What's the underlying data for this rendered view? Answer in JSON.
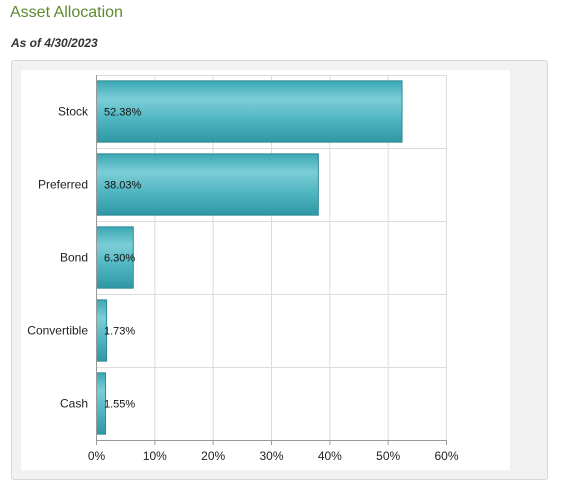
{
  "header": {
    "title": "Asset Allocation",
    "as_of": "As of 4/30/2023"
  },
  "chart_data": {
    "type": "bar",
    "orientation": "horizontal",
    "categories": [
      "Stock",
      "Preferred",
      "Bond",
      "Convertible",
      "Cash"
    ],
    "values": [
      52.38,
      38.03,
      6.3,
      1.73,
      1.55
    ],
    "value_labels": [
      "52.38%",
      "38.03%",
      "6.30%",
      "1.73%",
      "1.55%"
    ],
    "xlim": [
      0,
      60
    ],
    "x_ticks": [
      0,
      10,
      20,
      30,
      40,
      50,
      60
    ],
    "x_tick_labels": [
      "0%",
      "10%",
      "20%",
      "30%",
      "40%",
      "50%",
      "60%"
    ],
    "grid": true,
    "legend": false,
    "bar_color": "#49b3bf",
    "bar_edge_color": "#2f8a95"
  }
}
